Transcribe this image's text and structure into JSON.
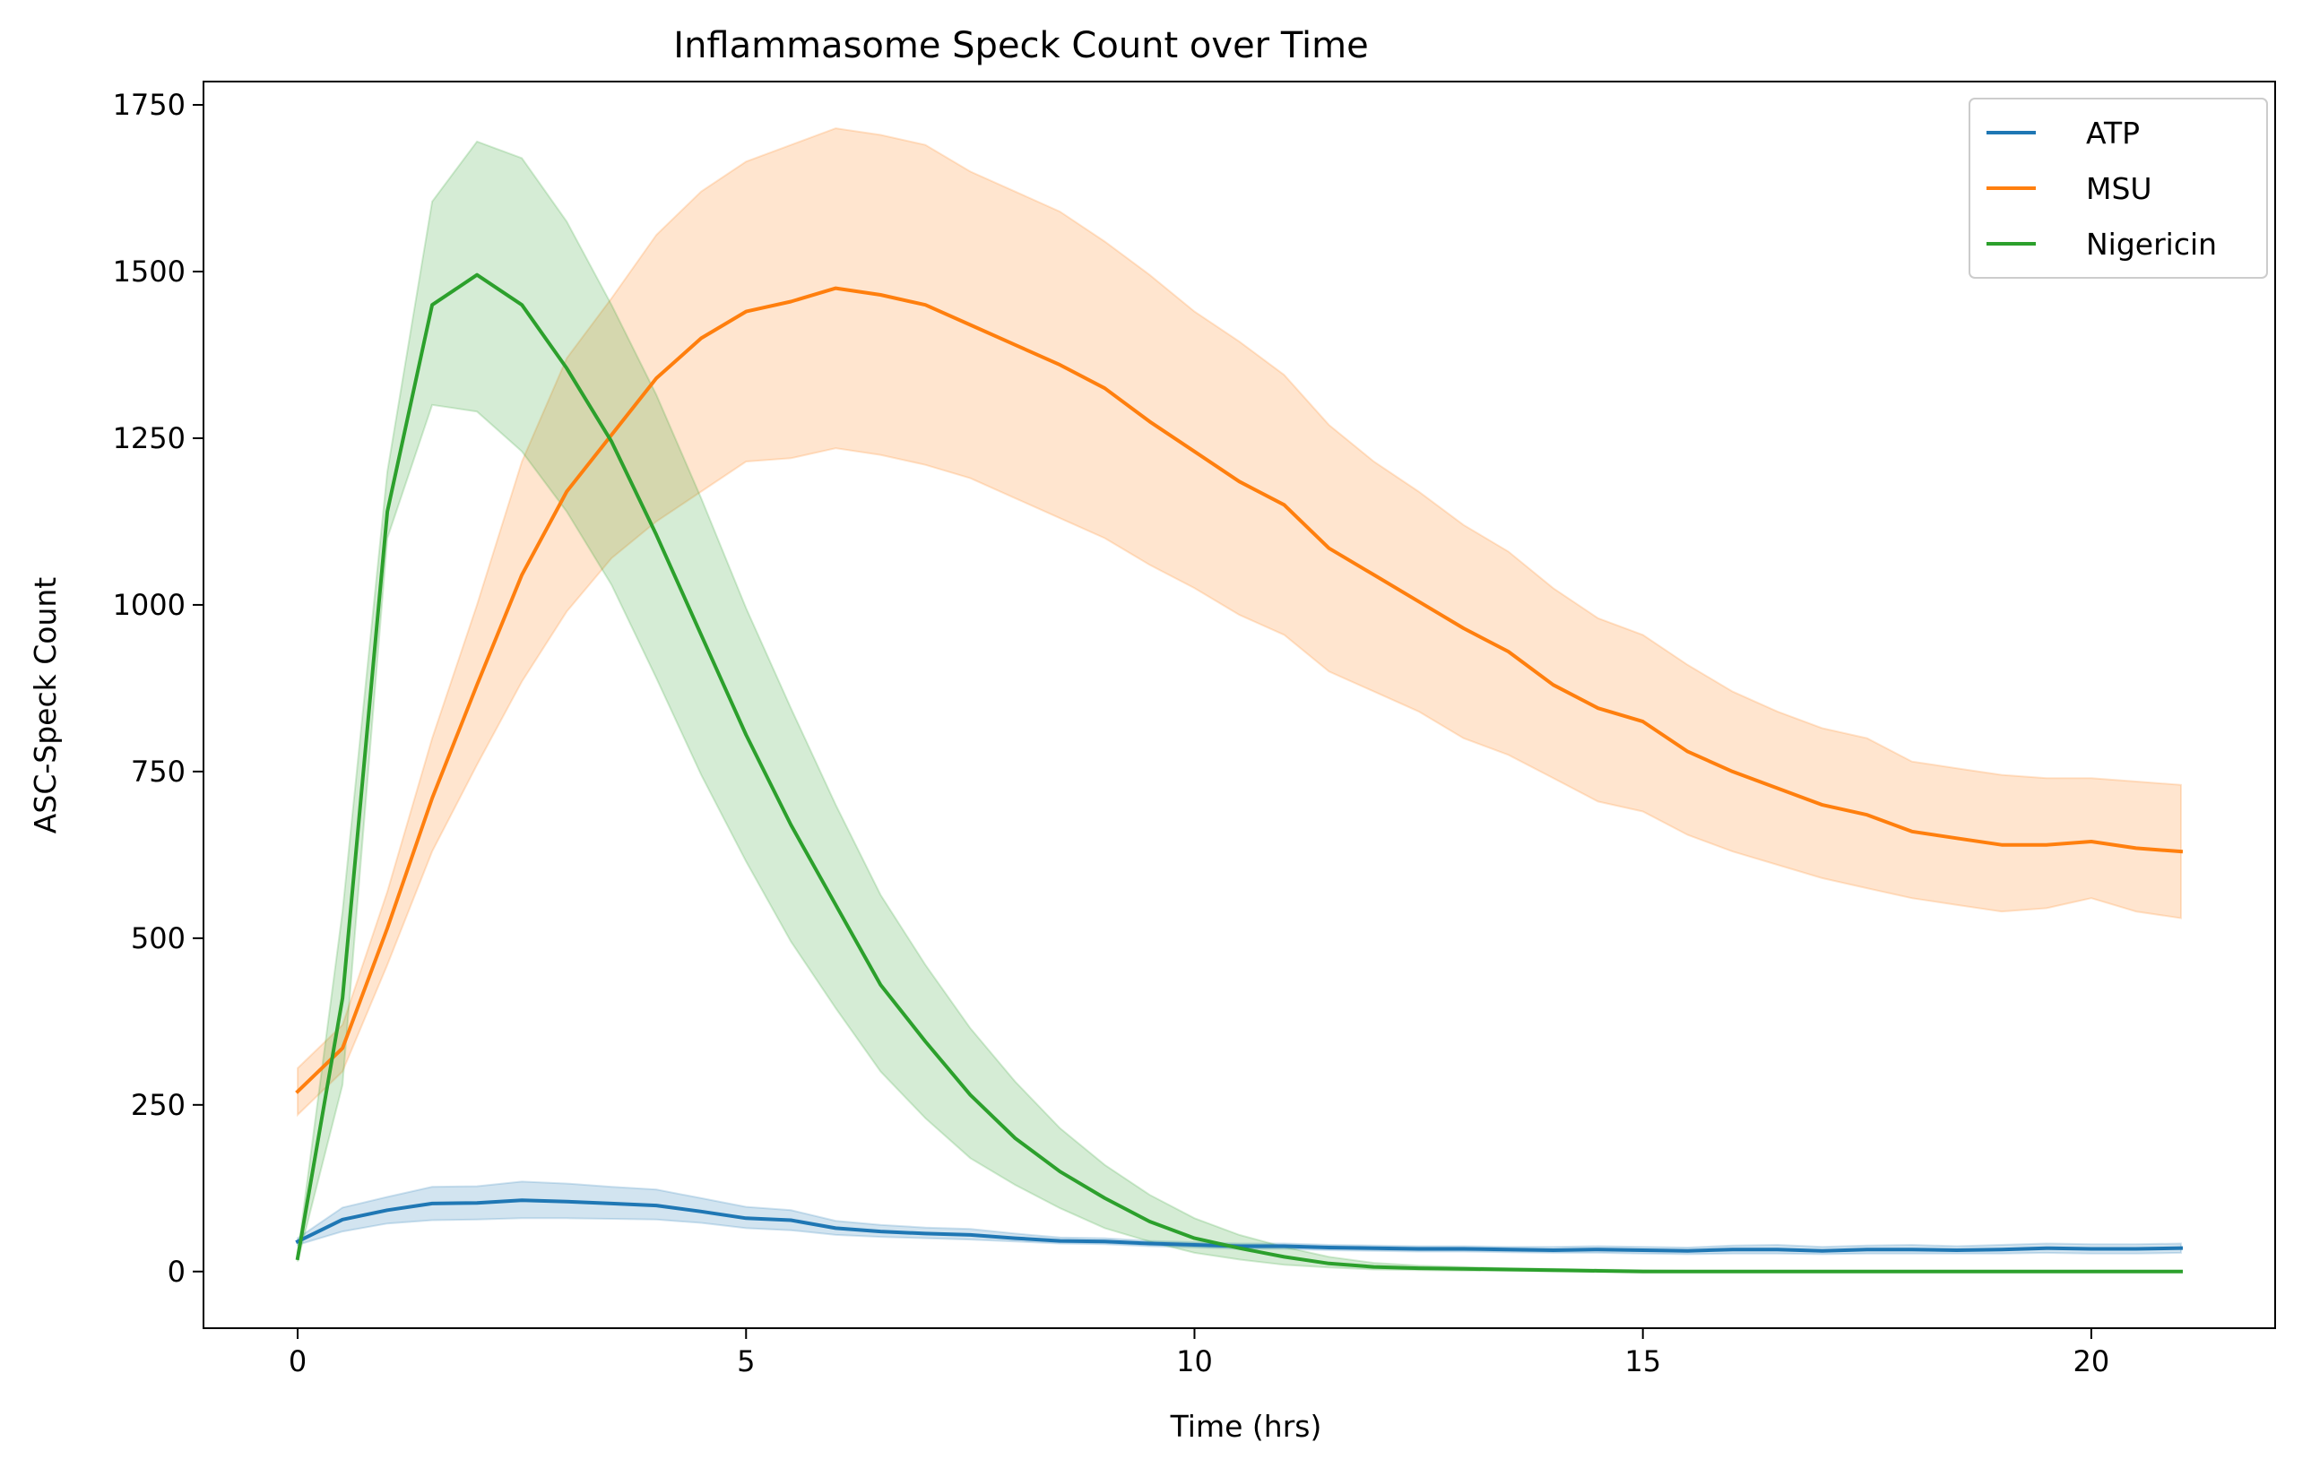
{
  "chart_data": {
    "type": "line",
    "title": "Inflammasome Speck Count over Time",
    "xlabel": "Time (hrs)",
    "ylabel": "ASC-Speck Count",
    "xlim": [
      -1.05,
      22.05
    ],
    "ylim": [
      -85,
      1785
    ],
    "xticks": [
      0,
      5,
      10,
      15,
      20
    ],
    "yticks": [
      0,
      250,
      500,
      750,
      1000,
      1250,
      1500,
      1750
    ],
    "grid": false,
    "legend_position": "top-right",
    "x": [
      0,
      0.5,
      1,
      1.5,
      2,
      2.5,
      3,
      3.5,
      4,
      4.5,
      5,
      5.5,
      6,
      6.5,
      7,
      7.5,
      8,
      8.5,
      9,
      9.5,
      10,
      10.5,
      11,
      11.5,
      12,
      12.5,
      13,
      13.5,
      14,
      14.5,
      15,
      15.5,
      16,
      16.5,
      17,
      17.5,
      18,
      18.5,
      19,
      19.5,
      20,
      20.5,
      21
    ],
    "series": [
      {
        "name": "ATP",
        "color": "#1f77b4",
        "values": [
          45,
          78,
          92,
          102,
          103,
          107,
          105,
          102,
          99,
          90,
          80,
          77,
          65,
          60,
          57,
          55,
          50,
          46,
          45,
          42,
          40,
          38,
          38,
          36,
          35,
          34,
          34,
          33,
          32,
          33,
          32,
          31,
          33,
          33,
          31,
          33,
          33,
          32,
          33,
          35,
          34,
          34,
          35
        ],
        "lower": [
          40,
          60,
          72,
          77,
          78,
          80,
          80,
          79,
          78,
          73,
          65,
          62,
          55,
          52,
          50,
          48,
          45,
          42,
          41,
          38,
          36,
          34,
          34,
          32,
          31,
          30,
          30,
          29,
          28,
          28,
          27,
          26,
          27,
          27,
          26,
          27,
          27,
          27,
          27,
          28,
          27,
          27,
          28
        ],
        "upper": [
          50,
          96,
          112,
          127,
          128,
          135,
          132,
          127,
          123,
          110,
          97,
          92,
          76,
          70,
          66,
          64,
          57,
          51,
          50,
          46,
          44,
          42,
          42,
          40,
          39,
          38,
          38,
          37,
          37,
          38,
          37,
          36,
          39,
          40,
          37,
          39,
          40,
          38,
          40,
          42,
          41,
          41,
          42
        ]
      },
      {
        "name": "MSU",
        "color": "#ff7f0e",
        "values": [
          270,
          335,
          515,
          710,
          880,
          1045,
          1170,
          1255,
          1340,
          1400,
          1440,
          1455,
          1475,
          1465,
          1450,
          1420,
          1390,
          1360,
          1325,
          1275,
          1230,
          1185,
          1150,
          1085,
          1045,
          1005,
          965,
          930,
          880,
          845,
          825,
          780,
          750,
          725,
          700,
          685,
          660,
          650,
          640,
          640,
          645,
          635,
          630
        ],
        "lower": [
          235,
          300,
          460,
          630,
          760,
          885,
          990,
          1070,
          1125,
          1170,
          1215,
          1220,
          1235,
          1225,
          1210,
          1190,
          1160,
          1130,
          1100,
          1060,
          1025,
          985,
          955,
          900,
          870,
          840,
          800,
          775,
          740,
          705,
          690,
          655,
          630,
          610,
          590,
          575,
          560,
          550,
          540,
          545,
          560,
          540,
          530
        ],
        "upper": [
          305,
          370,
          570,
          800,
          1000,
          1215,
          1370,
          1460,
          1555,
          1620,
          1665,
          1690,
          1715,
          1705,
          1690,
          1650,
          1620,
          1590,
          1545,
          1495,
          1440,
          1395,
          1345,
          1270,
          1215,
          1170,
          1120,
          1080,
          1025,
          980,
          955,
          910,
          870,
          840,
          815,
          800,
          765,
          755,
          745,
          740,
          740,
          735,
          730
        ]
      },
      {
        "name": "Nigericin",
        "color": "#2ca02c",
        "values": [
          20,
          410,
          1140,
          1450,
          1495,
          1450,
          1355,
          1245,
          1105,
          955,
          805,
          670,
          550,
          430,
          345,
          265,
          200,
          150,
          110,
          75,
          50,
          35,
          22,
          12,
          7,
          5,
          4,
          3,
          2,
          1,
          0,
          0,
          0,
          0,
          0,
          0,
          0,
          0,
          0,
          0,
          0,
          0,
          0
        ],
        "lower": [
          15,
          280,
          1100,
          1300,
          1290,
          1230,
          1140,
          1030,
          890,
          745,
          615,
          495,
          395,
          300,
          230,
          170,
          130,
          95,
          65,
          45,
          28,
          18,
          10,
          6,
          3,
          2,
          1,
          1,
          0,
          0,
          0,
          0,
          0,
          0,
          0,
          0,
          0,
          0,
          0,
          0,
          0,
          0,
          0
        ],
        "upper": [
          25,
          540,
          1200,
          1605,
          1695,
          1670,
          1575,
          1450,
          1315,
          1160,
          995,
          845,
          700,
          565,
          460,
          365,
          285,
          215,
          160,
          115,
          80,
          55,
          37,
          22,
          13,
          9,
          7,
          5,
          4,
          3,
          2,
          1,
          1,
          1,
          1,
          1,
          1,
          1,
          1,
          1,
          1,
          1,
          1
        ]
      }
    ]
  }
}
